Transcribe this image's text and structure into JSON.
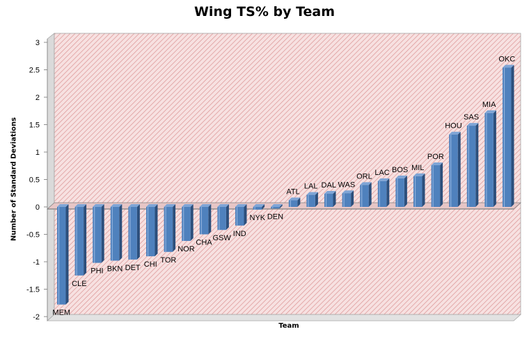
{
  "chart_data": {
    "type": "bar",
    "title": "Wing TS% by Team",
    "xlabel": "Team",
    "ylabel": "Number of Standard Deviations",
    "ylim": [
      -2,
      3
    ],
    "yticks": [
      3,
      2.5,
      2,
      1.5,
      1,
      0.5,
      0,
      -0.5,
      -1,
      -1.5,
      -2
    ],
    "ytick_labels": [
      "3",
      "2.5",
      "2",
      "1.5",
      "1",
      "0.5",
      "0",
      "-0.5",
      "-1",
      "-1.5",
      "-2"
    ],
    "categories": [
      "MEM",
      "CLE",
      "PHI",
      "BKN",
      "DET",
      "CHI",
      "TOR",
      "NOR",
      "CHA",
      "GSW",
      "IND",
      "NYK",
      "DEN",
      "ATL",
      "LAL",
      "DAL",
      "WAS",
      "ORL",
      "LAC",
      "BOS",
      "MIL",
      "POR",
      "HOU",
      "SAS",
      "MIA",
      "OKC"
    ],
    "values": [
      -1.78,
      -1.25,
      -1.02,
      -0.98,
      -0.96,
      -0.9,
      -0.82,
      -0.62,
      -0.5,
      -0.42,
      -0.34,
      -0.05,
      -0.03,
      0.12,
      0.22,
      0.24,
      0.25,
      0.4,
      0.47,
      0.52,
      0.56,
      0.76,
      1.32,
      1.48,
      1.71,
      2.54
    ],
    "grid": false,
    "legend": "none",
    "colors": {
      "bar_front": "#4F81BD",
      "bar_side": "#2C4F7C",
      "bar_top": "#7FA5D6",
      "wall_bg": "#F7E1E1",
      "wall_hatch": "#DE9C9C",
      "floor_bg": "#E2E2E2",
      "zero_line": "#7F7F7F"
    }
  }
}
